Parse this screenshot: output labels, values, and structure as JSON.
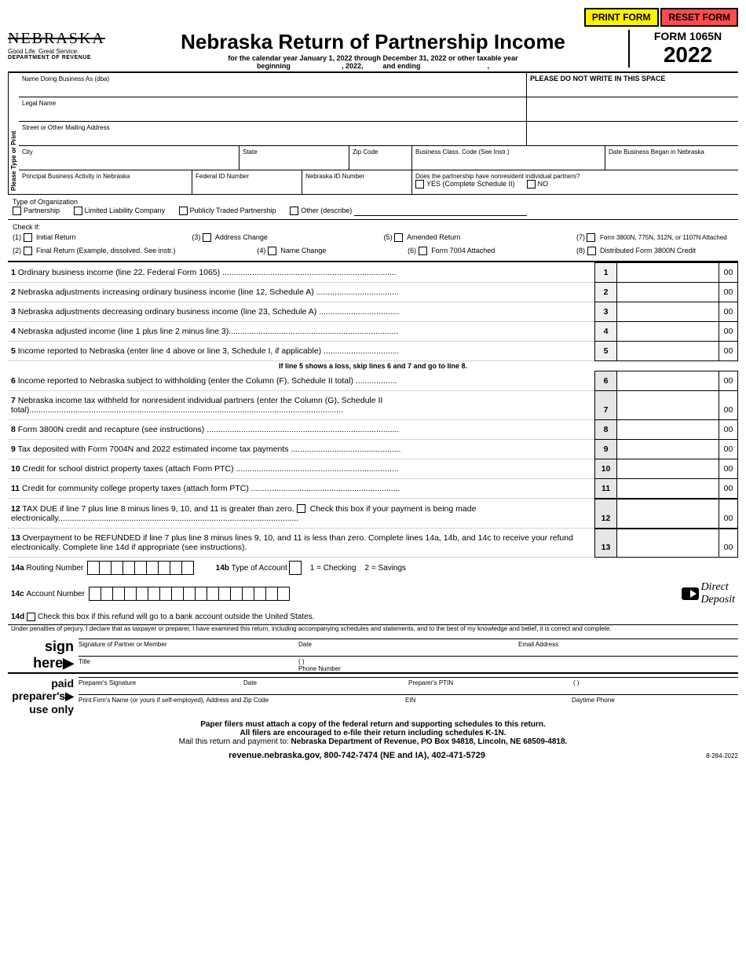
{
  "buttons": {
    "print": "PRINT FORM",
    "reset": "RESET FORM"
  },
  "logo": {
    "state": "NEBRASKA",
    "tagline": "Good Life. Great Service.",
    "dept": "DEPARTMENT OF REVENUE"
  },
  "header": {
    "title": "Nebraska Return of Partnership Income",
    "subtitle": "for the calendar year January 1, 2022 through December 31, 2022 or other taxable year",
    "beginning": "beginning",
    "mid_year": ", 2022,",
    "and_ending": "and ending",
    "comma_end": ",",
    "form_num": "FORM 1065N",
    "year": "2022"
  },
  "vtext": "Please Type or Print",
  "id_fields": {
    "dba": "Name Doing Business As (dba)",
    "nowrite": "PLEASE DO NOT WRITE IN THIS SPACE",
    "legal": "Legal Name",
    "street": "Street or Other Mailing Address",
    "city": "City",
    "state": "State",
    "zip": "Zip Code",
    "bclass": "Business Class. Code (See Instr.)",
    "dbegan": "Date Business Began in Nebraska",
    "activity": "Principal Business Activity in Nebraska",
    "fed_id": "Federal ID Number",
    "ne_id": "Nebraska ID Number",
    "nonres_q": "Does the partnership have nonresident individual partners?",
    "yes": "YES (Complete Schedule II)",
    "no": "NO"
  },
  "org": {
    "heading": "Type of Organization",
    "opts": [
      "Partnership",
      "Limited Liability Company",
      "Publicly Traded Partnership",
      "Other (describe)"
    ]
  },
  "checkif": {
    "heading": "Check if:",
    "items": [
      {
        "n": "(1)",
        "lbl": "Initial Return"
      },
      {
        "n": "(3)",
        "lbl": "Address Change"
      },
      {
        "n": "(5)",
        "lbl": "Amended Return"
      },
      {
        "n": "(7)",
        "lbl": "Form 3800N, 775N, 312N, or 1107N Attached"
      },
      {
        "n": "(2)",
        "lbl": "Final Return (Example, dissolved. See instr.)"
      },
      {
        "n": "(4)",
        "lbl": "Name Change"
      },
      {
        "n": "(6)",
        "lbl": "Form 7004 Attached"
      },
      {
        "n": "(8)",
        "lbl": "Distributed Form 3800N Credit"
      }
    ]
  },
  "lines": [
    {
      "num": "1",
      "desc": "Ordinary business income (line 22, Federal Form 1065) ............................................................................",
      "cents": "00"
    },
    {
      "num": "2",
      "desc": "Nebraska adjustments increasing ordinary business income (line 12, Schedule A) ....................................",
      "cents": "00"
    },
    {
      "num": "3",
      "desc": "Nebraska adjustments decreasing ordinary business income (line 23, Schedule A) ...................................",
      "cents": "00"
    },
    {
      "num": "4",
      "desc": "Nebraska adjusted income (line 1 plus line 2 minus line 3)..........................................................................",
      "cents": "00"
    },
    {
      "num": "5",
      "desc": "Income reported to Nebraska (enter line 4 above or line 3, Schedule I, if applicable) .................................",
      "cents": "00"
    }
  ],
  "interline": "If line 5 shows a loss, skip lines 6 and 7 and go to line 8.",
  "lines2": [
    {
      "num": "6",
      "desc": "Income reported to Nebraska subject to withholding (enter the Column (F), Schedule II total) ..................",
      "cents": "00",
      "shade": true
    },
    {
      "num": "7",
      "desc": "Nebraska income tax withheld for nonresident individual partners (enter the Column (G), Schedule II total).........................................................................................................................................",
      "cents": "00",
      "shade": true
    },
    {
      "num": "8",
      "desc": "Form 3800N credit and recapture (see instructions) ....................................................................................",
      "cents": "00",
      "shade": true
    },
    {
      "num": "9",
      "desc": "Tax deposited with Form 7004N and 2022 estimated income tax payments ................................................",
      "cents": "00",
      "shade": true
    },
    {
      "num": "10",
      "desc": "Credit for school district property taxes (attach Form PTC)  .......................................................................",
      "cents": "00",
      "shade": true
    },
    {
      "num": "11",
      "desc": "Credit for community college property taxes (attach form PTC) .................................................................",
      "cents": "00",
      "shade": true
    }
  ],
  "line12": {
    "num": "12",
    "pre": "TAX DUE if line 7 plus line 8 minus lines 9, 10, and 11 is greater than zero. ",
    "chk": "Check this box if your payment is being made electronically.........................................................................................................",
    "cents": "00"
  },
  "line13": {
    "num": "13",
    "desc": "Overpayment to be REFUNDED if line 7 plus line 8 minus lines 9, 10, and 11 is less than zero. Complete lines 14a, 14b, and 14c to receive your refund electronically. Complete line 14d if appropriate (see instructions).",
    "cents": "00"
  },
  "l14a": {
    "lbl": "14a",
    "name": "Routing Number",
    "cells": 9
  },
  "l14b": {
    "lbl": "14b",
    "name": "Type of Account",
    "opt1": "1 = Checking",
    "opt2": "2 = Savings"
  },
  "l14c": {
    "lbl": "14c",
    "name": "Account Number",
    "cells": 17
  },
  "dd": {
    "l1": "Direct",
    "l2": "Deposit"
  },
  "l14d": {
    "lbl": "14d",
    "desc": "Check this box if this refund will go to a bank account outside the United States."
  },
  "perjury": "Under penalties of perjury, I declare that as taxpayer or preparer, I have examined this return, including accompanying schedules and statements, and to the best of my knowledge and belief, it is correct and complete.",
  "sign": {
    "sign": "sign",
    "here": "here",
    "paid": "paid",
    "prep": "preparer's",
    "use": "use only",
    "sig_partner": "Signature of Partner or Member",
    "date": "Date",
    "email": "Email Address",
    "title": "Title",
    "phone": "Phone Number",
    "paren": "(          )",
    "prep_sig": "Preparer's Signature",
    "ptin": "Preparer's PTIN",
    "firm": "Print Firm's Name (or yours if self-employed), Address and Zip Code",
    "ein": "EIN",
    "day_phone": "Daytime Phone"
  },
  "footer": {
    "l1a": "Paper filers must attach a copy of the federal return and supporting schedules to this return.",
    "l1b": "All filers are encouraged to e-file their return including schedules K-1N.",
    "l2": "Mail this return and payment to: ",
    "l2b": "Nebraska Department of Revenue, PO Box 94818, Lincoln, NE 68509-4818.",
    "url": "revenue.nebraska.gov, 800-742-7474 (NE and IA), 402-471-5729",
    "rev": "8-284-2022"
  },
  "colors": {
    "print_bg": "#fff200",
    "reset_bg": "#ff4d4d",
    "shade_bg": "#e6e6e6"
  }
}
